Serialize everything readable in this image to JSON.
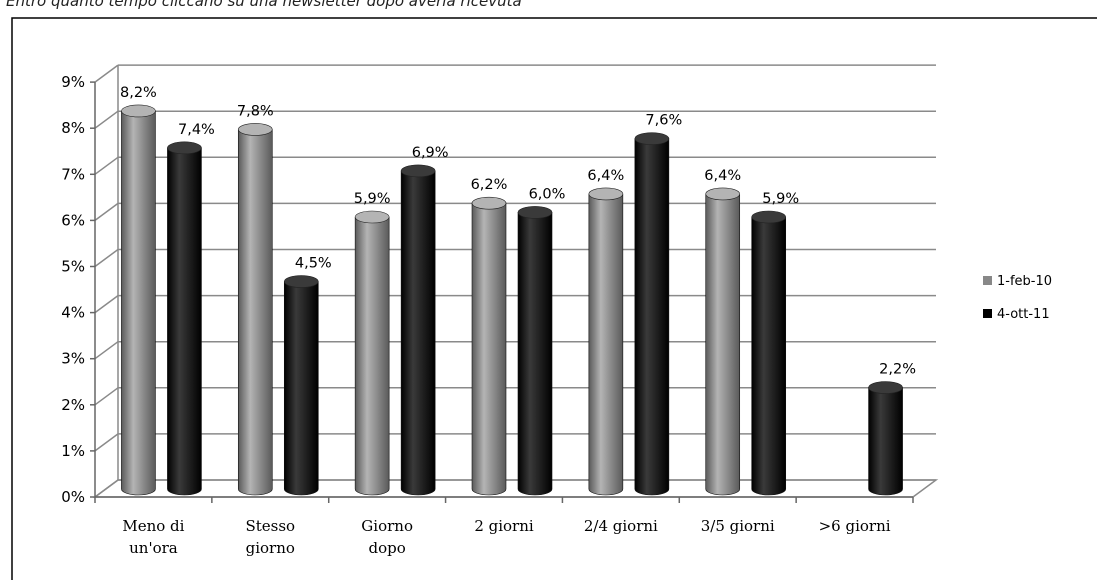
{
  "header": {
    "partial_title": "Entro quanto tempo cliccano su una newsletter dopo averla ricevuta"
  },
  "colors": {
    "series_1_light": "#b4b4b4",
    "series_1_dark": "#5a5a5a",
    "series_2_light": "#3a3a3a",
    "series_2_dark": "#000000",
    "grid": "#8a8a8a",
    "frame": "#666666"
  },
  "chart_data": {
    "type": "bar",
    "style": "3d-cylinder",
    "categories": [
      [
        "Meno di",
        "un'ora"
      ],
      [
        "Stesso",
        "giorno"
      ],
      [
        "Giorno",
        "dopo"
      ],
      [
        "2 giorni"
      ],
      [
        "2/4 giorni"
      ],
      [
        "3/5 giorni"
      ],
      [
        ">6 giorni"
      ]
    ],
    "series": [
      {
        "name": "1-feb-10",
        "values": [
          8.2,
          7.8,
          5.9,
          6.2,
          6.4,
          6.4,
          null
        ],
        "labels": [
          "8,2%",
          "7,8%",
          "5,9%",
          "6,2%",
          "6,4%",
          "6,4%",
          ""
        ]
      },
      {
        "name": "4-ott-11",
        "values": [
          7.4,
          4.5,
          6.9,
          6.0,
          7.6,
          5.9,
          2.2
        ],
        "labels": [
          "7,4%",
          "4,5%",
          "6,9%",
          "6,0%",
          "7,6%",
          "5,9%",
          "2,2%"
        ]
      }
    ],
    "y_ticks": [
      "0%",
      "1%",
      "2%",
      "3%",
      "4%",
      "5%",
      "6%",
      "7%",
      "8%",
      "9%"
    ],
    "ylim": [
      0,
      9
    ],
    "grid": true,
    "legend_position": "right"
  }
}
